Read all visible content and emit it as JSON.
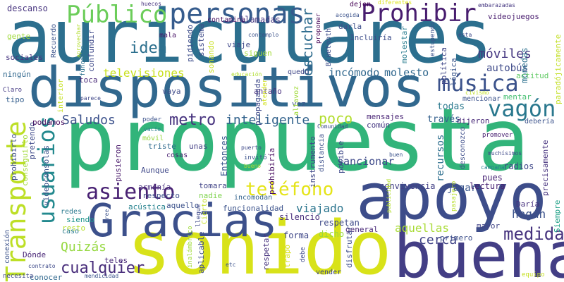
{
  "cloud": {
    "words": [
      {
        "text": "auriculares",
        "color": "#2c6f8e"
      },
      {
        "text": "propuesta",
        "color": "#32b47a"
      },
      {
        "text": "dispositivos",
        "color": "#31688e"
      },
      {
        "text": "sonido",
        "color": "#d8e219"
      },
      {
        "text": "apoyo",
        "color": "#3d4d8a"
      },
      {
        "text": "buena",
        "color": "#433e85"
      },
      {
        "text": "Gracias",
        "color": "#3c508b"
      },
      {
        "text": "Transporte",
        "color": "#bddf26"
      },
      {
        "text": "personas",
        "color": "#365c8d"
      },
      {
        "text": "Público",
        "color": "#6ccd5a"
      },
      {
        "text": "Prohibir",
        "color": "#481d6f"
      },
      {
        "text": "música",
        "color": "#3b528b"
      },
      {
        "text": "vagón",
        "color": "#2a788e"
      },
      {
        "text": "usuarios",
        "color": "#23898e"
      },
      {
        "text": "asiento",
        "color": "#482173"
      },
      {
        "text": "teléfono",
        "color": "#e5e419"
      },
      {
        "text": "medida",
        "color": "#46337e"
      },
      {
        "text": "metro",
        "color": "#46327e"
      },
      {
        "text": "cualquier",
        "color": "#472c7a"
      },
      {
        "text": "idea",
        "color": "#2d708e"
      },
      {
        "text": "móviles",
        "color": "#453781"
      },
      {
        "text": "escuchar",
        "color": "#2f6c8e"
      },
      {
        "text": "inteligente",
        "color": "#33638d"
      },
      {
        "text": "poco",
        "color": "#b2dd2d"
      },
      {
        "text": "Saludos",
        "color": "#3b518b"
      },
      {
        "text": "televisiones",
        "color": "#c8e020"
      },
      {
        "text": "incómodo",
        "color": "#31688e"
      },
      {
        "text": "molesto",
        "color": "#31688e"
      },
      {
        "text": "Quizás",
        "color": "#95d840"
      },
      {
        "text": "sancionar",
        "color": "#3e4989"
      },
      {
        "text": "aquellas",
        "color": "#a8db34"
      },
      {
        "text": "cerca",
        "color": "#414487"
      },
      {
        "text": "jugar",
        "color": "#39558c"
      },
      {
        "text": "hagan",
        "color": "#3b528b"
      },
      {
        "text": "viajado",
        "color": "#2b758e"
      },
      {
        "text": "recursos",
        "color": "#2e6f8e"
      },
      {
        "text": "autobús",
        "color": "#3e4a89"
      },
      {
        "text": "monedas",
        "color": "#2c718e"
      },
      {
        "text": "través",
        "color": "#34608d"
      },
      {
        "text": "todas",
        "color": "#2a788e"
      },
      {
        "text": "mensajes",
        "color": "#482475"
      },
      {
        "text": "dijeron",
        "color": "#482878"
      },
      {
        "text": "común",
        "color": "#453781"
      },
      {
        "text": "convivencia",
        "color": "#424086"
      },
      {
        "text": "lectura",
        "color": "#482173"
      },
      {
        "text": "respetan",
        "color": "#3e4a89"
      },
      {
        "text": "silencio",
        "color": "#472d7b"
      },
      {
        "text": "forma",
        "color": "#3f4788"
      },
      {
        "text": "dicho",
        "color": "#9bd93c"
      },
      {
        "text": "general",
        "color": "#482677"
      },
      {
        "text": "mayor",
        "color": "#414487"
      },
      {
        "text": "primero",
        "color": "#3c4f8a"
      },
      {
        "text": "radios",
        "color": "#3f4788"
      },
      {
        "text": "pues",
        "color": "#482475"
      },
      {
        "text": "Daría",
        "color": "#46307e"
      },
      {
        "text": "Entonces",
        "color": "#39568c"
      },
      {
        "text": "pusieron",
        "color": "#48186a"
      },
      {
        "text": "Aunque",
        "color": "#3f4889"
      },
      {
        "text": "armonía",
        "color": "#472f7d"
      },
      {
        "text": "respecto",
        "color": "#3d4e8a"
      },
      {
        "text": "triste",
        "color": "#2f6b8e"
      },
      {
        "text": "unas",
        "color": "#433e85"
      },
      {
        "text": "cosas",
        "color": "#481f70"
      },
      {
        "text": "tomara",
        "color": "#414487"
      },
      {
        "text": "nadie",
        "color": "#7fd34e"
      },
      {
        "text": "funcionalidad",
        "color": "#3b528b"
      },
      {
        "text": "incomodan",
        "color": "#33638d"
      },
      {
        "text": "aquello",
        "color": "#3b518b"
      },
      {
        "text": "acústica",
        "color": "#26828e"
      },
      {
        "text": "redes",
        "color": "#29798e"
      },
      {
        "text": "resto",
        "color": "#b5de2b"
      },
      {
        "text": "siendo",
        "color": "#1f948c"
      },
      {
        "text": "caso",
        "color": "#297a8e"
      },
      {
        "text": "Dónde",
        "color": "#482576"
      },
      {
        "text": "conocer",
        "color": "#31688e"
      },
      {
        "text": "teles",
        "color": "#482878"
      },
      {
        "text": "vaya",
        "color": "#3e4a89"
      },
      {
        "text": "antaño",
        "color": "#472e7c"
      },
      {
        "text": "toca",
        "color": "#482878"
      },
      {
        "text": "vez",
        "color": "#3b528b"
      },
      {
        "text": "podamos",
        "color": "#46085c"
      },
      {
        "text": "descanso",
        "color": "#46337e"
      },
      {
        "text": "llamadas",
        "color": "#453882"
      },
      {
        "text": "viaje",
        "color": "#3f4889"
      },
      {
        "text": "mala",
        "color": "#481467"
      },
      {
        "text": "gente",
        "color": "#9fda3a"
      },
      {
        "text": "sociales",
        "color": "#463480"
      },
      {
        "text": "ningún",
        "color": "#31688e"
      },
      {
        "text": "tipo",
        "color": "#355f8d"
      },
      {
        "text": "Claro",
        "color": "#443983"
      },
      {
        "text": "actitud",
        "color": "#5ec962"
      },
      {
        "text": "debería",
        "color": "#3b528b"
      },
      {
        "text": "promover",
        "color": "#482071"
      },
      {
        "text": "campaña",
        "color": "#25838e"
      },
      {
        "text": "Siempre",
        "color": "#1fa187"
      },
      {
        "text": "paradójicamente",
        "color": "#c2df23"
      },
      {
        "text": "precisamente",
        "color": "#46327e"
      },
      {
        "text": "muchísimos",
        "color": "#3e4989"
      },
      {
        "text": "desconozco",
        "color": "#3d4d8a"
      },
      {
        "text": "pasajero",
        "color": "#b8de29"
      },
      {
        "text": "mentar",
        "color": "#44bf70"
      },
      {
        "text": "mencionar",
        "color": "#3b528b"
      },
      {
        "text": "civismo",
        "color": "#c0df25"
      },
      {
        "text": "videojuegos",
        "color": "#481c6e"
      },
      {
        "text": "ésta",
        "color": "#3e4989"
      },
      {
        "text": "embarazadas",
        "color": "#453781"
      },
      {
        "text": "estupendo",
        "color": "#3b528b"
      },
      {
        "text": "política",
        "color": "#404688"
      },
      {
        "text": "lógica",
        "color": "#39568c"
      },
      {
        "text": "molestar",
        "color": "#287c8e"
      },
      {
        "text": "Incluiría",
        "color": "#3d4d8a"
      },
      {
        "text": "darla",
        "color": "#3d4e8a"
      },
      {
        "text": "dejen",
        "color": "#440154"
      },
      {
        "text": "diferentes",
        "color": "#dce319"
      },
      {
        "text": "acogida",
        "color": "#3b528b"
      },
      {
        "text": "Bluetooth",
        "color": "#3d4d8a"
      },
      {
        "text": "proponer",
        "color": "#440154"
      },
      {
        "text": "contamina",
        "color": "#471063"
      },
      {
        "text": "sistema",
        "color": "#3e4989"
      },
      {
        "text": "funciona",
        "color": "#2c728e"
      },
      {
        "text": "sonando",
        "color": "#c8e020"
      },
      {
        "text": "contemplo",
        "color": "#3b528b"
      },
      {
        "text": "siguen",
        "color": "#a2da37"
      },
      {
        "text": "educación",
        "color": "#b0dd2f"
      },
      {
        "text": "quedó",
        "color": "#3f4788"
      },
      {
        "text": "pidiendo",
        "color": "#3d4d8a"
      },
      {
        "text": "confundir",
        "color": "#3e4989"
      },
      {
        "text": "aprovechar",
        "color": "#b2dd2d"
      },
      {
        "text": "Recuerdo",
        "color": "#3b528b"
      },
      {
        "text": "huecos",
        "color": "#46327e"
      },
      {
        "text": "interior",
        "color": "#c5e021"
      },
      {
        "text": "parece",
        "color": "#3f4788"
      },
      {
        "text": "poder",
        "color": "#3b528b"
      },
      {
        "text": "vacío",
        "color": "#287d8e"
      },
      {
        "text": "móvil",
        "color": "#98d83e"
      },
      {
        "text": "propaganda",
        "color": "#3e4989"
      },
      {
        "text": "atender",
        "color": "#d0e11c"
      },
      {
        "text": "altavoz",
        "color": "#a0da39"
      },
      {
        "text": "Comunidad",
        "color": "#3d4e8a"
      },
      {
        "text": "distancia",
        "color": "#3c4f8a"
      },
      {
        "text": "instrumento",
        "color": "#3f4788"
      },
      {
        "text": "posible",
        "color": "#3e4989"
      },
      {
        "text": "prohibiría",
        "color": "#470d60"
      },
      {
        "text": "puerto",
        "color": "#3e4989"
      },
      {
        "text": "invitó",
        "color": "#3b528b"
      },
      {
        "text": "bueno",
        "color": "#a5db36"
      },
      {
        "text": "buen",
        "color": "#3b528b"
      },
      {
        "text": "publicidad",
        "color": "#b2dd2d"
      },
      {
        "text": "prohibirlo",
        "color": "#3d4d8a"
      },
      {
        "text": "conseguirlo",
        "color": "#a2da37"
      },
      {
        "text": "pretendo",
        "color": "#3e4989"
      },
      {
        "text": "videoconsolas",
        "color": "#3b528b"
      },
      {
        "text": "conexión",
        "color": "#3b528b"
      },
      {
        "text": "inalámbrico",
        "color": "#9fda3a"
      },
      {
        "text": "aplicable",
        "color": "#3d4d8a"
      },
      {
        "text": "llegue",
        "color": "#3e4989"
      },
      {
        "text": "Cierto",
        "color": "#c2df23"
      },
      {
        "text": "cree",
        "color": "#3b528b"
      },
      {
        "text": "etc",
        "color": "#3b528b"
      },
      {
        "text": "respetar",
        "color": "#46327e"
      },
      {
        "text": "trapo",
        "color": "#d8e219"
      },
      {
        "text": "debe",
        "color": "#3e4989"
      },
      {
        "text": "vender",
        "color": "#3f4788"
      },
      {
        "text": "disfrutar",
        "color": "#3d4d8a"
      },
      {
        "text": "necesita",
        "color": "#3f4788"
      },
      {
        "text": "contrato",
        "color": "#3e4989"
      },
      {
        "text": "mendicidad",
        "color": "#3b528b"
      },
      {
        "text": "equipo",
        "color": "#c5e021"
      }
    ]
  }
}
